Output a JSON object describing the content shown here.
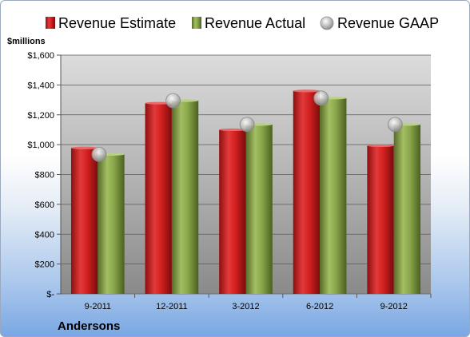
{
  "chart_data": {
    "type": "bar",
    "units_label": "$millions",
    "company": "Andersons",
    "categories": [
      "9-2011",
      "12-2011",
      "3-2012",
      "6-2012",
      "9-2012"
    ],
    "ylim": [
      0,
      1600
    ],
    "yticks": [
      0,
      200,
      400,
      600,
      800,
      1000,
      1200,
      1400,
      1600
    ],
    "ytick_labels": [
      "$-",
      "$200",
      "$400",
      "$600",
      "$800",
      "$1,000",
      "$1,200",
      "$1,400",
      "$1,600"
    ],
    "grid": true,
    "legend_position": "top",
    "series": [
      {
        "name": "Revenue Estimate",
        "kind": "bar",
        "color": "#d42020",
        "values": [
          978,
          1278,
          1100,
          1360,
          993
        ]
      },
      {
        "name": "Revenue Actual",
        "kind": "bar",
        "color": "#7f9e3e",
        "values": [
          935,
          1295,
          1135,
          1312,
          1135
        ]
      },
      {
        "name": "Revenue GAAP",
        "kind": "marker",
        "color": "#b8b8b8",
        "values": [
          935,
          1295,
          1135,
          1312,
          1135
        ]
      }
    ]
  }
}
